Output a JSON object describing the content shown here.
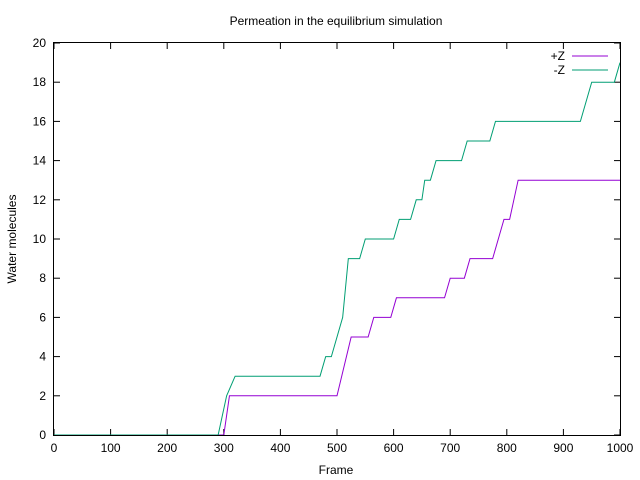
{
  "chart_data": {
    "type": "line",
    "title": "Permeation in the equilibrium simulation",
    "xlabel": "Frame",
    "ylabel": "Water molecules",
    "xlim": [
      0,
      1000
    ],
    "ylim": [
      0,
      20
    ],
    "x_ticks": [
      0,
      100,
      200,
      300,
      400,
      500,
      600,
      700,
      800,
      900,
      1000
    ],
    "y_ticks": [
      0,
      2,
      4,
      6,
      8,
      10,
      12,
      14,
      16,
      18,
      20
    ],
    "grid": false,
    "legend_position": "top-right",
    "series": [
      {
        "name": "+Z",
        "color": "#9400d3",
        "points": [
          [
            0,
            0
          ],
          [
            300,
            0
          ],
          [
            310,
            2
          ],
          [
            500,
            2
          ],
          [
            525,
            5
          ],
          [
            555,
            5
          ],
          [
            565,
            6
          ],
          [
            595,
            6
          ],
          [
            605,
            7
          ],
          [
            690,
            7
          ],
          [
            700,
            8
          ],
          [
            725,
            8
          ],
          [
            735,
            9
          ],
          [
            775,
            9
          ],
          [
            795,
            11
          ],
          [
            805,
            11
          ],
          [
            820,
            13
          ],
          [
            1000,
            13
          ]
        ]
      },
      {
        "name": "-Z",
        "color": "#009e73",
        "points": [
          [
            0,
            0
          ],
          [
            290,
            0
          ],
          [
            305,
            2
          ],
          [
            320,
            3
          ],
          [
            470,
            3
          ],
          [
            480,
            4
          ],
          [
            490,
            4
          ],
          [
            510,
            6
          ],
          [
            520,
            9
          ],
          [
            540,
            9
          ],
          [
            550,
            10
          ],
          [
            600,
            10
          ],
          [
            610,
            11
          ],
          [
            630,
            11
          ],
          [
            640,
            12
          ],
          [
            650,
            12
          ],
          [
            655,
            13
          ],
          [
            665,
            13
          ],
          [
            675,
            14
          ],
          [
            720,
            14
          ],
          [
            730,
            15
          ],
          [
            770,
            15
          ],
          [
            780,
            16
          ],
          [
            930,
            16
          ],
          [
            950,
            18
          ],
          [
            990,
            18
          ],
          [
            1000,
            19
          ]
        ]
      }
    ]
  }
}
